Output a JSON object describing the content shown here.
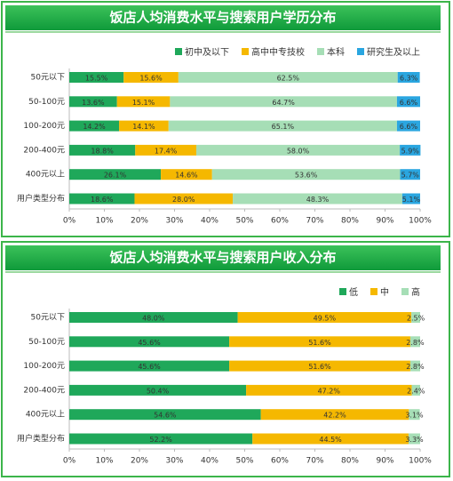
{
  "chart_data": [
    {
      "type": "bar",
      "orientation": "horizontal",
      "stacked": true,
      "title": "饭店人均消费水平与搜索用户学历分布",
      "categories": [
        "50元以下",
        "50-100元",
        "100-200元",
        "200-400元",
        "400元以上",
        "用户类型分布"
      ],
      "series": [
        {
          "name": "初中及以下",
          "color": "#1fa85a",
          "values": [
            15.5,
            13.6,
            14.2,
            18.8,
            26.1,
            18.6
          ],
          "value_labels": [
            "15.5%",
            "13.6%",
            "14.2%",
            "18.8%",
            "26.1%",
            "18.6%"
          ]
        },
        {
          "name": "高中中专技校",
          "color": "#f5b800",
          "values": [
            15.6,
            15.1,
            14.1,
            17.4,
            14.6,
            28.0
          ],
          "value_labels": [
            "15.6%",
            "15.1%",
            "14.1%",
            "17.4%",
            "14.6%",
            "28.0%"
          ]
        },
        {
          "name": "本科",
          "color": "#a6deb6",
          "values": [
            62.5,
            64.7,
            65.1,
            58.0,
            53.6,
            48.3
          ],
          "value_labels": [
            "62.5%",
            "64.7%",
            "65.1%",
            "58.0%",
            "53.6%",
            "48.3%"
          ]
        },
        {
          "name": "研究生及以上",
          "color": "#2aa6e0",
          "values": [
            6.3,
            6.6,
            6.6,
            5.9,
            5.7,
            5.1
          ],
          "value_labels": [
            "6.3%",
            "6.6%",
            "6.6%",
            "5.9%",
            "5.7%",
            "5.1%"
          ]
        }
      ],
      "xlim": [
        0,
        100
      ],
      "xticks": [
        {
          "value": 0,
          "label": "0%"
        },
        {
          "value": 10,
          "label": "10%"
        },
        {
          "value": 20,
          "label": "20%"
        },
        {
          "value": 30,
          "label": "30%"
        },
        {
          "value": 40,
          "label": "40%"
        },
        {
          "value": 50,
          "label": "50%"
        },
        {
          "value": 60,
          "label": "60%"
        },
        {
          "value": 70,
          "label": "70%"
        },
        {
          "value": 80,
          "label": "80%"
        },
        {
          "value": 90,
          "label": "90%"
        },
        {
          "value": 100,
          "label": "100%"
        }
      ]
    },
    {
      "type": "bar",
      "orientation": "horizontal",
      "stacked": true,
      "title": "饭店人均消费水平与搜索用户收入分布",
      "categories": [
        "50元以下",
        "50-100元",
        "100-200元",
        "200-400元",
        "400元以上",
        "用户类型分布"
      ],
      "series": [
        {
          "name": "低",
          "color": "#1fa85a",
          "values": [
            48.0,
            45.6,
            45.6,
            50.4,
            54.6,
            52.2
          ],
          "value_labels": [
            "48.0%",
            "45.6%",
            "45.6%",
            "50.4%",
            "54.6%",
            "52.2%"
          ]
        },
        {
          "name": "中",
          "color": "#f5b800",
          "values": [
            49.5,
            51.6,
            51.6,
            47.2,
            42.2,
            44.5
          ],
          "value_labels": [
            "49.5%",
            "51.6%",
            "51.6%",
            "47.2%",
            "42.2%",
            "44.5%"
          ]
        },
        {
          "name": "高",
          "color": "#a6deb6",
          "values": [
            2.5,
            2.8,
            2.8,
            2.4,
            3.1,
            3.3
          ],
          "value_labels": [
            "2.5%",
            "2.8%",
            "2.8%",
            "2.4%",
            "3.1%",
            "3.3%"
          ]
        }
      ],
      "xlim": [
        0,
        100
      ],
      "xticks": [
        {
          "value": 0,
          "label": "0%"
        },
        {
          "value": 10,
          "label": "10%"
        },
        {
          "value": 20,
          "label": "20%"
        },
        {
          "value": 30,
          "label": "30%"
        },
        {
          "value": 40,
          "label": "40%"
        },
        {
          "value": 50,
          "label": "50%"
        },
        {
          "value": 60,
          "label": "60%"
        },
        {
          "value": 70,
          "label": "70%"
        },
        {
          "value": 80,
          "label": "80%"
        },
        {
          "value": 90,
          "label": "90%"
        },
        {
          "value": 100,
          "label": "100%"
        }
      ]
    }
  ]
}
